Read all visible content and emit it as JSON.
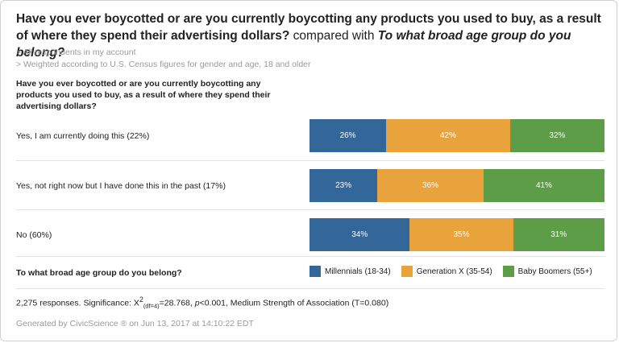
{
  "header": {
    "question": "Have you ever boycotted or are you currently boycotting any products you used to buy, as a result of where they spend their advertising dollars?",
    "compared_with": "compared with",
    "question2": "To what broad age group do you belong?"
  },
  "notes": [
    "> All respondents in my account",
    "> Weighted according to U.S. Census figures for gender and age, 18 and older"
  ],
  "question_label": "Have you ever boycotted or are you currently boycotting any products you used to buy, as a result of where they spend their advertising dollars?",
  "legend": {
    "title": "To what broad age group do you belong?"
  },
  "footer": {
    "stats_prefix": "2,275 responses. Significance: X",
    "stats_sup": "2",
    "stats_sub": "(df=4)",
    "stats_value": "=28.768, ",
    "stats_p": "p",
    "stats_rest": "<0.001, Medium Strength of Association (T=0.080)",
    "generated": "Generated by CivicScience ® on Jun 13, 2017 at 14:10:22 EDT"
  },
  "colors": {
    "millennials": "#336699",
    "genx": "#e8a33d",
    "boomers": "#5d9d48"
  },
  "chart_data": {
    "type": "bar",
    "orientation": "horizontal",
    "stacked": "100%",
    "categories": [
      "Yes, I am currently doing this (22%)",
      "Yes, not right now but I have done this in the past (17%)",
      "No (60%)"
    ],
    "series": [
      {
        "name": "Millennials (18-34)",
        "color": "#336699",
        "values": [
          26,
          23,
          34
        ],
        "labels": [
          "26%",
          "23%",
          "34%"
        ]
      },
      {
        "name": "Generation X (35-54)",
        "color": "#e8a33d",
        "values": [
          42,
          36,
          35
        ],
        "labels": [
          "42%",
          "36%",
          "35%"
        ]
      },
      {
        "name": "Baby Boomers (55+)",
        "color": "#5d9d48",
        "values": [
          32,
          41,
          31
        ],
        "labels": [
          "32%",
          "41%",
          "31%"
        ]
      }
    ],
    "xlim": [
      0,
      100
    ],
    "legend_position": "bottom"
  }
}
